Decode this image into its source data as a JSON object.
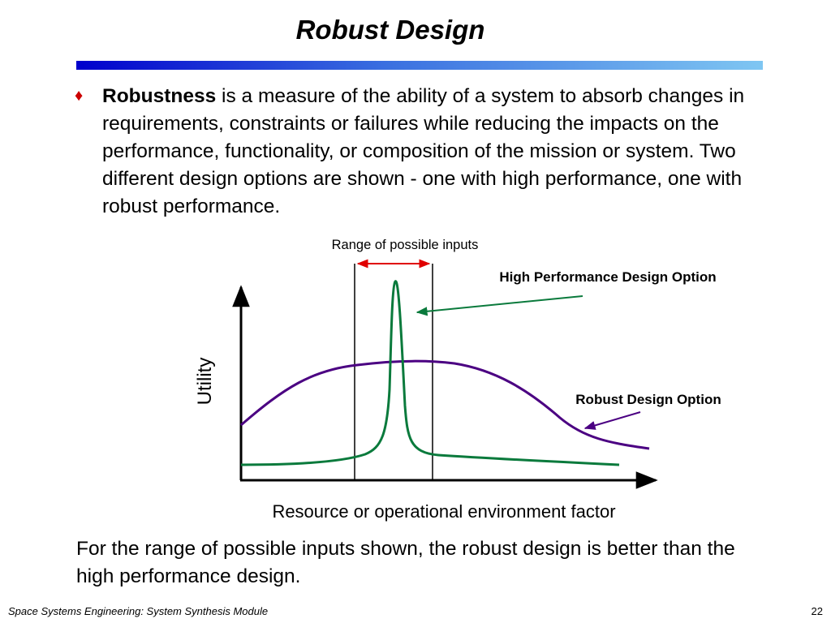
{
  "slide": {
    "title": "Robust Design",
    "bullet": {
      "term": "Robustness",
      "text": " is a measure of the ability of a system to absorb changes in requirements, constraints or failures while reducing the impacts on the performance, functionality, or composition of the mission or system. Two different design options are shown - one with high performance, one with robust performance."
    },
    "conclusion": "For the range of possible inputs shown, the robust design is better than the high performance design.",
    "footer": {
      "course": "Space Systems Engineering: System Synthesis Module",
      "page_number": "22"
    }
  },
  "diagram": {
    "range_label": "Range of possible inputs",
    "high_perf_label": "High Performance Design Option",
    "robust_label": "Robust Design Option",
    "y_axis_label": "Utility",
    "x_axis_label": "Resource or operational environment factor",
    "colors": {
      "high_perf_curve": "#0a7a3c",
      "robust_curve": "#4b0082",
      "range_arrow": "#e00000",
      "bullet": "#cc0000"
    }
  }
}
